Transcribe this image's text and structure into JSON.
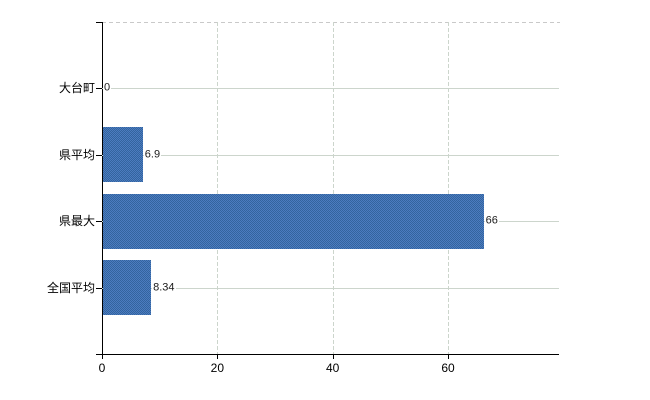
{
  "chart_data": {
    "type": "bar",
    "orientation": "horizontal",
    "title": "",
    "xlabel": "",
    "ylabel": "",
    "categories": [
      "大台町",
      "県平均",
      "県最大",
      "全国平均"
    ],
    "values": [
      0,
      6.9,
      66,
      8.34
    ],
    "value_labels": [
      "0",
      "6.9",
      "66",
      "8.34"
    ],
    "x_ticks": [
      0,
      20,
      40,
      60
    ],
    "x_tick_labels": [
      "0",
      "20",
      "40",
      "60"
    ],
    "xlim": [
      0,
      79.25
    ],
    "grid": "on",
    "legend_position": "none",
    "colors": {
      "bar_dither_dark": "#33649e",
      "bar_dither_light": "#4c7cc0",
      "grid_line": "#ccd5cc",
      "top_border_dash": "#c9c9c9",
      "axis": "#000000",
      "label_text": "#000000",
      "background": "#ffffff"
    }
  }
}
